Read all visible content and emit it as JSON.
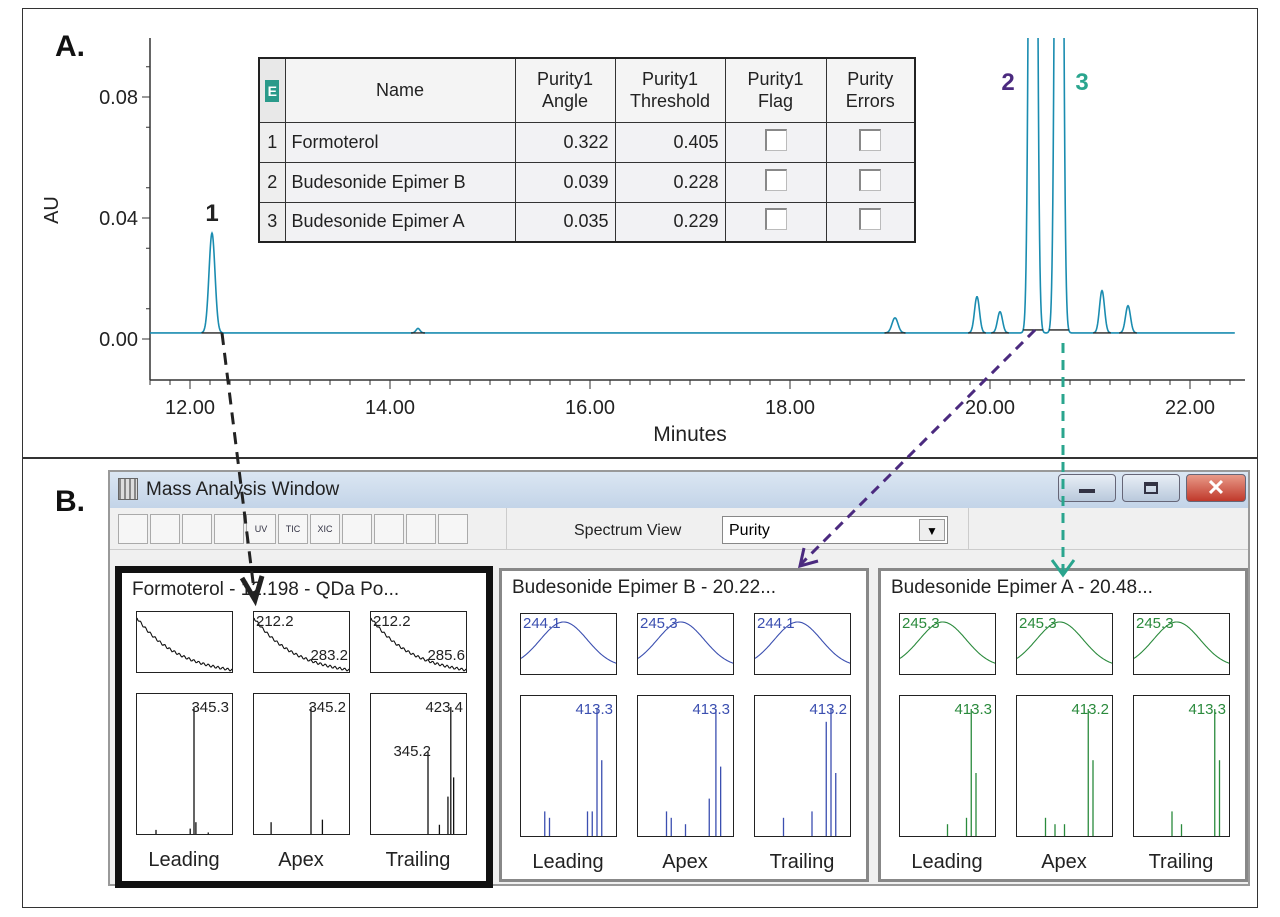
{
  "sections": {
    "a": "A.",
    "b": "B."
  },
  "chart_data": {
    "type": "line",
    "xlabel": "Minutes",
    "ylabel": "AU",
    "xlim": [
      11.6,
      22.5
    ],
    "ylim": [
      -0.012,
      0.1
    ],
    "xticks": [
      "12.00",
      "14.00",
      "16.00",
      "18.00",
      "20.00",
      "22.00"
    ],
    "xtick_values": [
      12,
      14,
      16,
      18,
      20,
      22
    ],
    "yticks": [
      "0.00",
      "0.04",
      "0.08"
    ],
    "ytick_values": [
      0,
      0.04,
      0.08
    ],
    "baseline": 0.002,
    "peaks": [
      {
        "rt": 12.22,
        "height": 0.033,
        "width": 0.03,
        "label": "1",
        "label_color": "#222222"
      },
      {
        "rt": 14.28,
        "height": 0.0015,
        "width": 0.02
      },
      {
        "rt": 19.05,
        "height": 0.005,
        "width": 0.03
      },
      {
        "rt": 19.87,
        "height": 0.012,
        "width": 0.025
      },
      {
        "rt": 20.1,
        "height": 0.007,
        "width": 0.025
      },
      {
        "rt": 20.43,
        "height": 0.5,
        "width": 0.028,
        "label": "2",
        "label_color": "#4b2a7f"
      },
      {
        "rt": 20.69,
        "height": 0.5,
        "width": 0.028,
        "label": "3",
        "label_color": "#2aa58e"
      },
      {
        "rt": 21.12,
        "height": 0.014,
        "width": 0.025
      },
      {
        "rt": 21.38,
        "height": 0.009,
        "width": 0.025
      }
    ],
    "line_color": "#1a8cb0"
  },
  "purity_table": {
    "headers": [
      "Name",
      "Purity1\nAngle",
      "Purity1\nThreshold",
      "Purity1\nFlag",
      "Purity\nErrors"
    ],
    "rows": [
      {
        "idx": "1",
        "name": "Formoterol",
        "angle": "0.322",
        "threshold": "0.405"
      },
      {
        "idx": "2",
        "name": "Budesonide Epimer B",
        "angle": "0.039",
        "threshold": "0.228"
      },
      {
        "idx": "3",
        "name": "Budesonide Epimer A",
        "angle": "0.035",
        "threshold": "0.229"
      }
    ]
  },
  "window": {
    "title": "Mass Analysis Window",
    "toolbar": [
      "",
      "",
      "",
      "",
      "UV",
      "TIC",
      "XIC",
      "",
      "",
      "",
      ""
    ],
    "spectrum_view_label": "Spectrum View",
    "spectrum_view_value": "Purity",
    "panels": [
      {
        "title": "Formoterol - 12.198 - QDa Po...",
        "color": "#111111",
        "uv": [
          {
            "type": "decay",
            "labels": []
          },
          {
            "type": "decay",
            "labels": [
              "212.2",
              "283.2"
            ]
          },
          {
            "type": "decay",
            "labels": [
              "212.2",
              "285.6"
            ]
          }
        ],
        "ms": [
          {
            "labels": [
              "345.3"
            ],
            "bars": [
              [
                0.2,
                0.04
              ],
              [
                0.56,
                0.05
              ],
              [
                0.6,
                1
              ],
              [
                0.62,
                0.1
              ],
              [
                0.75,
                0.02
              ]
            ]
          },
          {
            "labels": [
              "345.2"
            ],
            "bars": [
              [
                0.18,
                0.1
              ],
              [
                0.6,
                1
              ],
              [
                0.72,
                0.12
              ]
            ]
          },
          {
            "labels": [
              "423.4",
              "345.2"
            ],
            "bars": [
              [
                0.6,
                0.65
              ],
              [
                0.72,
                0.08
              ],
              [
                0.81,
                0.3
              ],
              [
                0.84,
                1
              ],
              [
                0.87,
                0.45
              ]
            ]
          }
        ],
        "captions": [
          "Leading",
          "Apex",
          "Trailing"
        ]
      },
      {
        "title": "Budesonide Epimer B - 20.22...",
        "color": "#3b4fb0",
        "uv": [
          {
            "type": "bell",
            "labels": [
              "244.1"
            ]
          },
          {
            "type": "bell",
            "labels": [
              "245.3"
            ]
          },
          {
            "type": "bell",
            "labels": [
              "244.1"
            ]
          }
        ],
        "ms": [
          {
            "labels": [
              "413.3"
            ],
            "bars": [
              [
                0.25,
                0.2
              ],
              [
                0.3,
                0.15
              ],
              [
                0.7,
                0.2
              ],
              [
                0.75,
                0.2
              ],
              [
                0.8,
                1
              ],
              [
                0.85,
                0.6
              ]
            ]
          },
          {
            "labels": [
              "413.3"
            ],
            "bars": [
              [
                0.3,
                0.2
              ],
              [
                0.35,
                0.15
              ],
              [
                0.5,
                0.1
              ],
              [
                0.75,
                0.3
              ],
              [
                0.82,
                1
              ],
              [
                0.87,
                0.55
              ]
            ]
          },
          {
            "labels": [
              "413.2"
            ],
            "bars": [
              [
                0.3,
                0.15
              ],
              [
                0.6,
                0.2
              ],
              [
                0.75,
                0.9
              ],
              [
                0.8,
                1
              ],
              [
                0.85,
                0.5
              ]
            ]
          }
        ],
        "captions": [
          "Leading",
          "Apex",
          "Trailing"
        ]
      },
      {
        "title": "Budesonide Epimer A - 20.48...",
        "color": "#2a8a3c",
        "uv": [
          {
            "type": "bell",
            "labels": [
              "245.3"
            ]
          },
          {
            "type": "bell",
            "labels": [
              "245.3"
            ]
          },
          {
            "type": "bell",
            "labels": [
              "245.3"
            ]
          }
        ],
        "ms": [
          {
            "labels": [
              "413.3"
            ],
            "bars": [
              [
                0.5,
                0.1
              ],
              [
                0.7,
                0.15
              ],
              [
                0.75,
                1
              ],
              [
                0.8,
                0.5
              ]
            ]
          },
          {
            "labels": [
              "413.2"
            ],
            "bars": [
              [
                0.3,
                0.15
              ],
              [
                0.4,
                0.1
              ],
              [
                0.5,
                0.1
              ],
              [
                0.75,
                1
              ],
              [
                0.8,
                0.6
              ]
            ]
          },
          {
            "labels": [
              "413.3"
            ],
            "bars": [
              [
                0.4,
                0.2
              ],
              [
                0.5,
                0.1
              ],
              [
                0.85,
                1
              ],
              [
                0.9,
                0.6
              ]
            ]
          }
        ],
        "captions": [
          "Leading",
          "Apex",
          "Trailing"
        ]
      }
    ]
  }
}
